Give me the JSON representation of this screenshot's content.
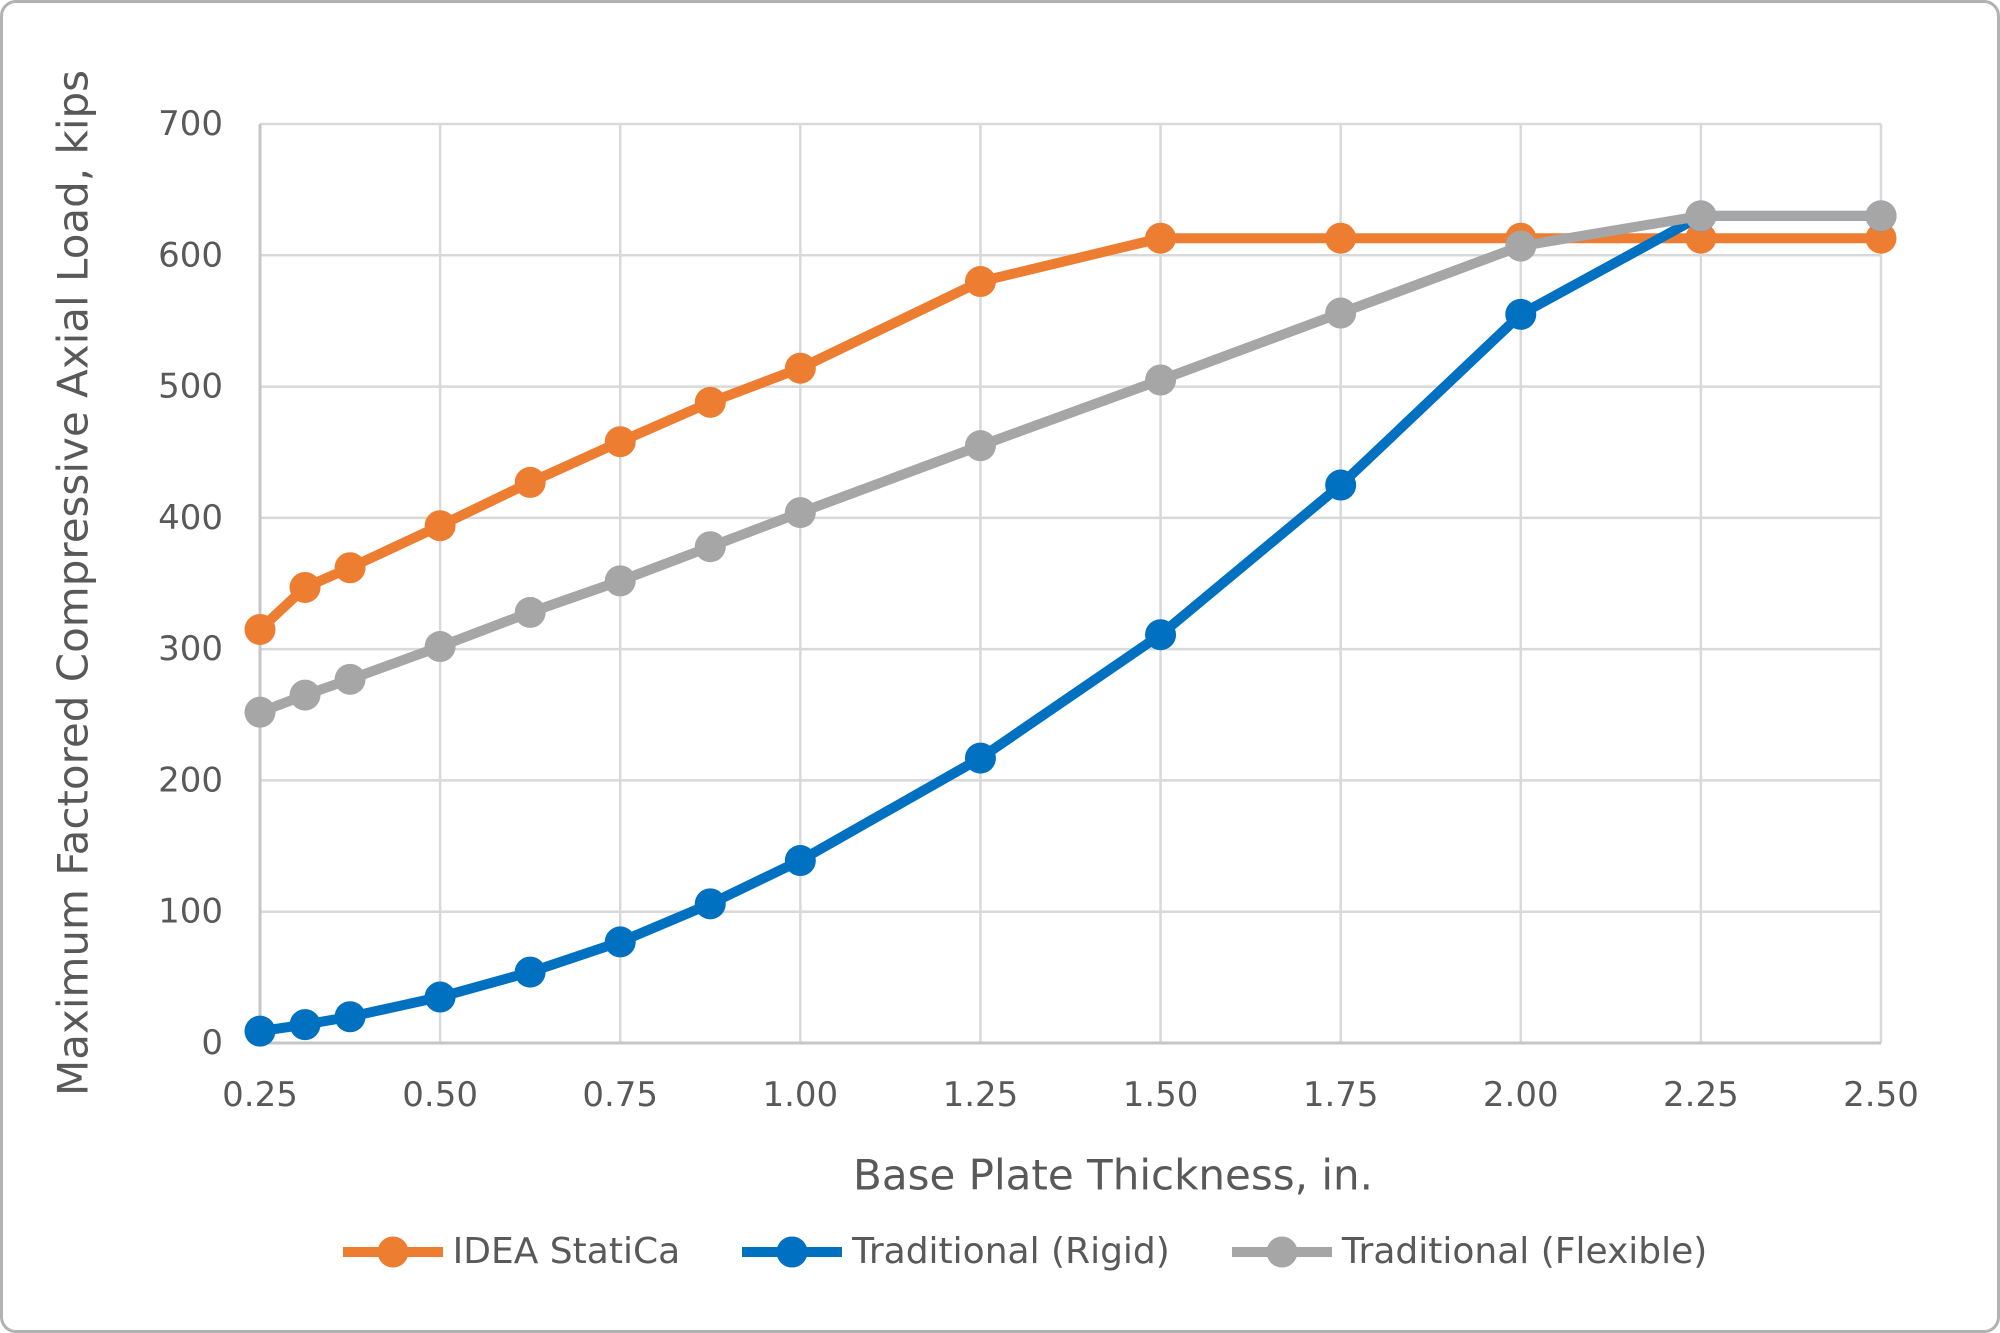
{
  "chart_data": {
    "type": "line",
    "title": "",
    "xlabel": "Base Plate Thickness, in.",
    "ylabel": "Maximum Factored Compressive Axial Load, kips",
    "x": [
      0.25,
      0.3125,
      0.375,
      0.5,
      0.625,
      0.75,
      0.875,
      1.0,
      1.25,
      1.5,
      1.75,
      2.0,
      2.25,
      2.5
    ],
    "series": [
      {
        "name": "IDEA StatiCa",
        "color": "#ED7D31",
        "values": [
          315,
          347,
          362,
          394,
          427,
          458,
          488,
          514,
          580,
          613,
          613,
          613,
          613,
          613
        ]
      },
      {
        "name": "Traditional (Rigid)",
        "color": "#0070C0",
        "values": [
          9,
          14,
          20,
          35,
          54,
          77,
          106,
          139,
          217,
          311,
          425,
          555,
          630,
          630
        ]
      },
      {
        "name": "Traditional (Flexible)",
        "color": "#A6A6A6",
        "values": [
          252,
          265,
          277,
          302,
          328,
          352,
          378,
          404,
          455,
          505,
          556,
          607,
          630,
          630
        ]
      }
    ],
    "xlim": [
      0.25,
      2.5
    ],
    "ylim": [
      0,
      700
    ],
    "x_tick_values": [
      0.25,
      0.5,
      0.75,
      1.0,
      1.25,
      1.5,
      1.75,
      2.0,
      2.25,
      2.5
    ],
    "x_tick_labels": [
      "0.25",
      "0.50",
      "0.75",
      "1.00",
      "1.25",
      "1.50",
      "1.75",
      "2.00",
      "2.25",
      "2.50"
    ],
    "y_ticks": [
      0,
      100,
      200,
      300,
      400,
      500,
      600,
      700
    ],
    "grid": true,
    "legend_position": "bottom"
  },
  "colors": {
    "text": "#595959",
    "gridline": "#D9D9D9",
    "axis_line": "#C6C6C6",
    "frame_border": "#B2B2B2",
    "background": "#FFFFFF"
  }
}
